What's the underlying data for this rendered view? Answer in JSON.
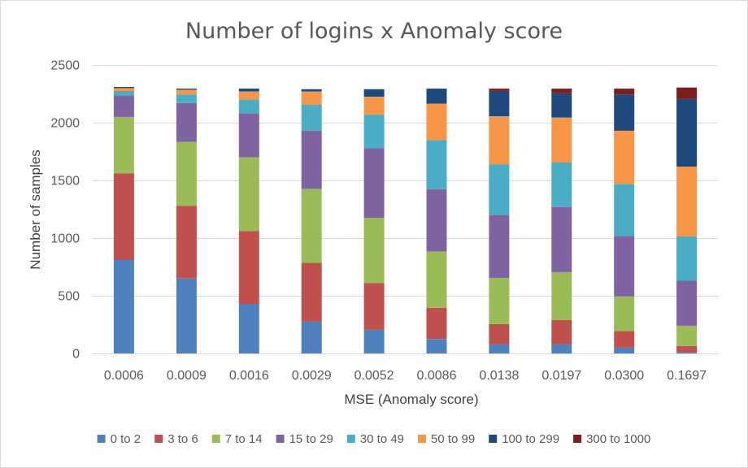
{
  "chart_data": {
    "type": "bar",
    "stacked": true,
    "title": "Number of logins x Anomaly score",
    "xlabel": "MSE (Anomaly score)",
    "ylabel": "Number of samples",
    "ylim": [
      0,
      2500
    ],
    "yticks": [
      0,
      500,
      1000,
      1500,
      2000,
      2500
    ],
    "grid": true,
    "legend_position": "bottom",
    "categories": [
      "0.0006",
      "0.0009",
      "0.0016",
      "0.0029",
      "0.0052",
      "0.0086",
      "0.0138",
      "0.0197",
      "0.0300",
      "0.1697"
    ],
    "series": [
      {
        "name": "0 to 2",
        "color": "#4f81bd",
        "values": [
          810,
          650,
          430,
          275,
          205,
          125,
          80,
          80,
          50,
          10
        ]
      },
      {
        "name": "3 to 6",
        "color": "#c0504d",
        "values": [
          750,
          630,
          630,
          510,
          405,
          270,
          175,
          210,
          145,
          55
        ]
      },
      {
        "name": "7 to 14",
        "color": "#9bbb59",
        "values": [
          490,
          555,
          640,
          640,
          565,
          490,
          400,
          415,
          300,
          175
        ]
      },
      {
        "name": "15 to 29",
        "color": "#8064a2",
        "values": [
          185,
          335,
          380,
          505,
          605,
          540,
          545,
          565,
          525,
          390
        ]
      },
      {
        "name": "30 to 49",
        "color": "#4bacc6",
        "values": [
          40,
          75,
          120,
          225,
          290,
          425,
          440,
          385,
          450,
          385
        ]
      },
      {
        "name": "50 to 99",
        "color": "#f79646",
        "values": [
          25,
          40,
          70,
          115,
          155,
          315,
          415,
          390,
          460,
          605
        ]
      },
      {
        "name": "100 to 299",
        "color": "#1f497d",
        "values": [
          10,
          10,
          25,
          20,
          65,
          130,
          220,
          210,
          315,
          585
        ]
      },
      {
        "name": "300 to 1000",
        "color": "#7b1e1e",
        "values": [
          0,
          0,
          0,
          0,
          0,
          0,
          20,
          40,
          50,
          100
        ]
      }
    ]
  }
}
